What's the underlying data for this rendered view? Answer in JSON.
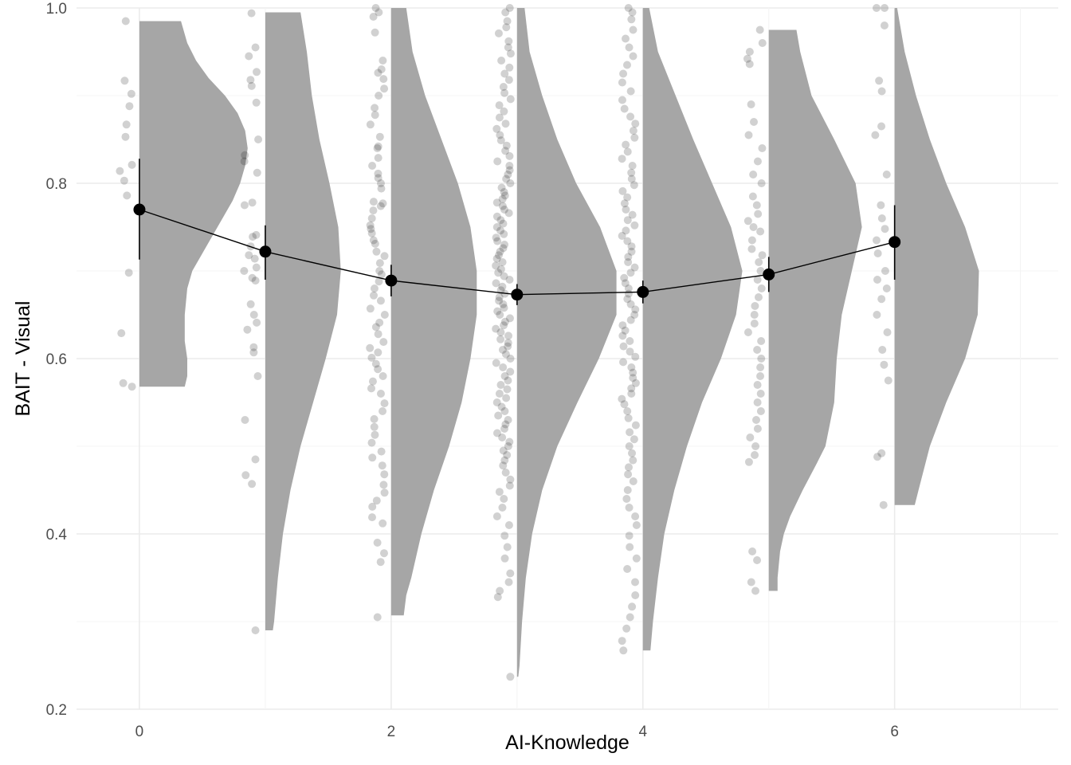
{
  "colors": {
    "background": "#ffffff",
    "grid_major": "#ebebeb",
    "grid_minor": "#f4f4f4",
    "density_fill": "#a6a6a6",
    "point_fill": "#000000",
    "summary": "#000000"
  },
  "chart_data": {
    "type": "raincloud",
    "xlabel": "AI-Knowledge",
    "ylabel": "BAIT - Visual",
    "xlim": [
      -0.5,
      7.3
    ],
    "ylim": [
      0.2,
      1.0
    ],
    "x_ticks": [
      0,
      2,
      4,
      6
    ],
    "y_ticks": [
      0.2,
      0.4,
      0.6,
      0.8,
      1.0
    ],
    "y_tick_labels": [
      "0.2",
      "0.4",
      "0.6",
      "0.8",
      "1.0"
    ],
    "grid": true,
    "means": [
      {
        "x": 0,
        "mean": 0.77,
        "lo": 0.713,
        "hi": 0.828
      },
      {
        "x": 1,
        "mean": 0.722,
        "lo": 0.69,
        "hi": 0.752
      },
      {
        "x": 2,
        "mean": 0.689,
        "lo": 0.671,
        "hi": 0.707
      },
      {
        "x": 3,
        "mean": 0.673,
        "lo": 0.661,
        "hi": 0.685
      },
      {
        "x": 4,
        "mean": 0.676,
        "lo": 0.663,
        "hi": 0.689
      },
      {
        "x": 5,
        "mean": 0.696,
        "lo": 0.676,
        "hi": 0.716
      },
      {
        "x": 6,
        "mean": 0.733,
        "lo": 0.69,
        "hi": 0.775
      }
    ],
    "densities": [
      {
        "x": 0,
        "y": [
          0.568,
          0.58,
          0.6,
          0.62,
          0.65,
          0.68,
          0.7,
          0.72,
          0.75,
          0.78,
          0.8,
          0.82,
          0.84,
          0.86,
          0.88,
          0.9,
          0.92,
          0.94,
          0.96,
          0.985
        ],
        "w": [
          0.36,
          0.38,
          0.38,
          0.36,
          0.36,
          0.38,
          0.42,
          0.5,
          0.62,
          0.74,
          0.8,
          0.84,
          0.86,
          0.84,
          0.78,
          0.68,
          0.55,
          0.45,
          0.38,
          0.33
        ]
      },
      {
        "x": 1,
        "y": [
          0.29,
          0.3,
          0.35,
          0.4,
          0.45,
          0.5,
          0.55,
          0.6,
          0.65,
          0.7,
          0.75,
          0.8,
          0.85,
          0.9,
          0.95,
          0.995
        ],
        "w": [
          0.06,
          0.07,
          0.1,
          0.14,
          0.2,
          0.28,
          0.38,
          0.48,
          0.57,
          0.6,
          0.58,
          0.51,
          0.43,
          0.37,
          0.33,
          0.28
        ]
      },
      {
        "x": 2,
        "y": [
          0.307,
          0.33,
          0.35,
          0.4,
          0.45,
          0.5,
          0.55,
          0.6,
          0.65,
          0.7,
          0.75,
          0.8,
          0.85,
          0.9,
          0.95,
          1.0
        ],
        "w": [
          0.1,
          0.12,
          0.16,
          0.24,
          0.34,
          0.46,
          0.56,
          0.63,
          0.68,
          0.68,
          0.63,
          0.53,
          0.4,
          0.27,
          0.17,
          0.12
        ]
      },
      {
        "x": 3,
        "y": [
          0.237,
          0.25,
          0.3,
          0.35,
          0.4,
          0.45,
          0.5,
          0.55,
          0.6,
          0.65,
          0.7,
          0.75,
          0.8,
          0.85,
          0.9,
          0.95,
          1.0
        ],
        "w": [
          0.01,
          0.02,
          0.04,
          0.07,
          0.12,
          0.2,
          0.32,
          0.48,
          0.65,
          0.79,
          0.79,
          0.66,
          0.47,
          0.32,
          0.2,
          0.1,
          0.06
        ]
      },
      {
        "x": 4,
        "y": [
          0.267,
          0.3,
          0.35,
          0.4,
          0.45,
          0.5,
          0.55,
          0.6,
          0.65,
          0.7,
          0.75,
          0.8,
          0.85,
          0.9,
          0.95,
          1.0
        ],
        "w": [
          0.06,
          0.08,
          0.12,
          0.17,
          0.25,
          0.35,
          0.47,
          0.62,
          0.74,
          0.79,
          0.7,
          0.55,
          0.4,
          0.26,
          0.12,
          0.05
        ]
      },
      {
        "x": 5,
        "y": [
          0.335,
          0.35,
          0.38,
          0.4,
          0.42,
          0.45,
          0.48,
          0.5,
          0.55,
          0.6,
          0.65,
          0.7,
          0.75,
          0.8,
          0.85,
          0.9,
          0.95,
          0.975
        ],
        "w": [
          0.07,
          0.07,
          0.09,
          0.12,
          0.17,
          0.27,
          0.38,
          0.45,
          0.52,
          0.54,
          0.58,
          0.66,
          0.74,
          0.69,
          0.52,
          0.34,
          0.25,
          0.22
        ]
      },
      {
        "x": 6,
        "y": [
          0.433,
          0.45,
          0.5,
          0.55,
          0.6,
          0.65,
          0.7,
          0.75,
          0.8,
          0.85,
          0.9,
          0.95,
          1.0
        ],
        "w": [
          0.16,
          0.19,
          0.28,
          0.41,
          0.56,
          0.66,
          0.67,
          0.56,
          0.41,
          0.28,
          0.17,
          0.08,
          0.02
        ]
      }
    ],
    "points": [
      {
        "x": 0,
        "values": [
          0.985,
          0.917,
          0.902,
          0.888,
          0.867,
          0.853,
          0.821,
          0.814,
          0.803,
          0.786,
          0.698,
          0.629,
          0.572,
          0.568
        ]
      },
      {
        "x": 1,
        "values": [
          0.994,
          0.955,
          0.945,
          0.927,
          0.918,
          0.911,
          0.892,
          0.85,
          0.832,
          0.825,
          0.812,
          0.778,
          0.775,
          0.741,
          0.739,
          0.728,
          0.718,
          0.714,
          0.704,
          0.7,
          0.692,
          0.689,
          0.662,
          0.65,
          0.641,
          0.633,
          0.613,
          0.607,
          0.58,
          0.53,
          0.485,
          0.467,
          0.457,
          0.29
        ]
      },
      {
        "x": 2,
        "values": [
          1.0,
          0.995,
          0.99,
          0.972,
          0.94,
          0.93,
          0.926,
          0.919,
          0.908,
          0.9,
          0.886,
          0.878,
          0.867,
          0.853,
          0.842,
          0.84,
          0.829,
          0.82,
          0.811,
          0.806,
          0.8,
          0.794,
          0.779,
          0.777,
          0.774,
          0.769,
          0.76,
          0.752,
          0.748,
          0.743,
          0.735,
          0.731,
          0.722,
          0.717,
          0.709,
          0.7,
          0.696,
          0.688,
          0.68,
          0.672,
          0.666,
          0.657,
          0.65,
          0.641,
          0.636,
          0.628,
          0.619,
          0.612,
          0.607,
          0.601,
          0.594,
          0.588,
          0.58,
          0.574,
          0.566,
          0.56,
          0.549,
          0.54,
          0.531,
          0.522,
          0.513,
          0.504,
          0.494,
          0.487,
          0.478,
          0.468,
          0.456,
          0.447,
          0.438,
          0.431,
          0.419,
          0.412,
          0.39,
          0.378,
          0.368,
          0.305
        ]
      },
      {
        "x": 3,
        "values": [
          1.0,
          0.995,
          0.985,
          0.978,
          0.971,
          0.962,
          0.955,
          0.948,
          0.94,
          0.932,
          0.925,
          0.918,
          0.91,
          0.903,
          0.896,
          0.889,
          0.882,
          0.875,
          0.868,
          0.862,
          0.855,
          0.849,
          0.843,
          0.837,
          0.831,
          0.825,
          0.82,
          0.815,
          0.81,
          0.805,
          0.8,
          0.795,
          0.79,
          0.786,
          0.782,
          0.778,
          0.774,
          0.77,
          0.766,
          0.762,
          0.758,
          0.754,
          0.75,
          0.746,
          0.742,
          0.738,
          0.734,
          0.73,
          0.726,
          0.722,
          0.718,
          0.714,
          0.71,
          0.706,
          0.702,
          0.698,
          0.694,
          0.69,
          0.686,
          0.682,
          0.678,
          0.674,
          0.67,
          0.666,
          0.662,
          0.658,
          0.654,
          0.65,
          0.646,
          0.642,
          0.638,
          0.634,
          0.63,
          0.626,
          0.622,
          0.618,
          0.614,
          0.61,
          0.605,
          0.6,
          0.595,
          0.59,
          0.585,
          0.58,
          0.575,
          0.57,
          0.565,
          0.56,
          0.555,
          0.55,
          0.545,
          0.54,
          0.535,
          0.53,
          0.525,
          0.52,
          0.515,
          0.51,
          0.505,
          0.5,
          0.495,
          0.49,
          0.484,
          0.478,
          0.47,
          0.462,
          0.455,
          0.448,
          0.44,
          0.43,
          0.42,
          0.41,
          0.398,
          0.385,
          0.372,
          0.355,
          0.345,
          0.335,
          0.328,
          0.237
        ]
      },
      {
        "x": 4,
        "values": [
          1.0,
          0.995,
          0.987,
          0.975,
          0.965,
          0.955,
          0.945,
          0.935,
          0.925,
          0.915,
          0.905,
          0.895,
          0.885,
          0.876,
          0.868,
          0.86,
          0.852,
          0.844,
          0.836,
          0.828,
          0.82,
          0.812,
          0.805,
          0.798,
          0.791,
          0.784,
          0.777,
          0.77,
          0.764,
          0.758,
          0.752,
          0.746,
          0.74,
          0.734,
          0.728,
          0.722,
          0.716,
          0.71,
          0.704,
          0.698,
          0.692,
          0.686,
          0.68,
          0.674,
          0.668,
          0.662,
          0.656,
          0.65,
          0.644,
          0.638,
          0.632,
          0.626,
          0.62,
          0.614,
          0.608,
          0.602,
          0.596,
          0.59,
          0.584,
          0.578,
          0.572,
          0.566,
          0.56,
          0.554,
          0.548,
          0.54,
          0.532,
          0.524,
          0.516,
          0.508,
          0.5,
          0.492,
          0.484,
          0.476,
          0.468,
          0.46,
          0.45,
          0.44,
          0.43,
          0.42,
          0.41,
          0.398,
          0.385,
          0.372,
          0.36,
          0.345,
          0.33,
          0.317,
          0.305,
          0.292,
          0.278,
          0.267
        ]
      },
      {
        "x": 5,
        "values": [
          0.975,
          0.96,
          0.95,
          0.942,
          0.936,
          0.89,
          0.87,
          0.855,
          0.84,
          0.825,
          0.81,
          0.8,
          0.785,
          0.775,
          0.765,
          0.757,
          0.75,
          0.745,
          0.735,
          0.725,
          0.718,
          0.71,
          0.7,
          0.69,
          0.68,
          0.67,
          0.66,
          0.65,
          0.64,
          0.63,
          0.62,
          0.61,
          0.6,
          0.59,
          0.58,
          0.57,
          0.56,
          0.55,
          0.54,
          0.53,
          0.52,
          0.51,
          0.5,
          0.49,
          0.482,
          0.38,
          0.37,
          0.345,
          0.335
        ]
      },
      {
        "x": 6,
        "values": [
          1.0,
          1.0,
          0.98,
          0.917,
          0.905,
          0.865,
          0.855,
          0.81,
          0.775,
          0.76,
          0.748,
          0.735,
          0.72,
          0.7,
          0.69,
          0.68,
          0.668,
          0.65,
          0.63,
          0.61,
          0.593,
          0.575,
          0.492,
          0.488,
          0.433
        ]
      }
    ]
  }
}
